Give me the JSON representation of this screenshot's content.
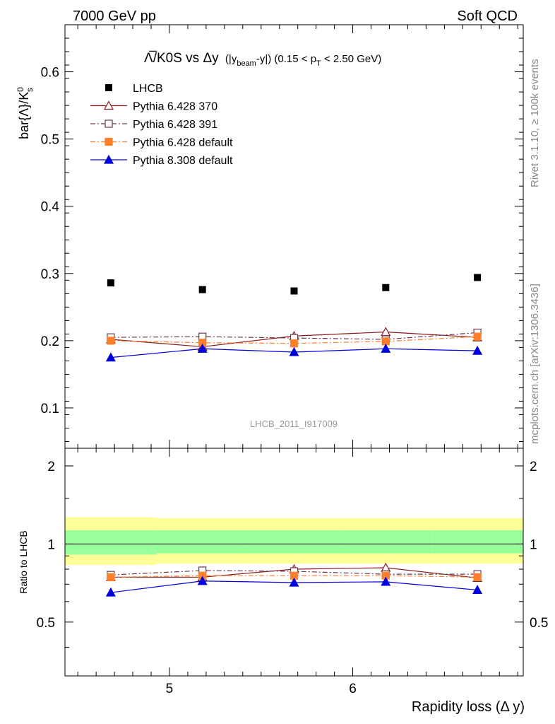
{
  "header": {
    "left": "7000 GeV pp",
    "right": "Soft QCD"
  },
  "side_labels": {
    "rivet": "Rivet 3.1.10, ≥ 100k events",
    "mcplots": "mcplots.cern.ch [arXiv:1306.3436]"
  },
  "watermark": "LHCB_2011_I917009",
  "colors": {
    "data": "#000000",
    "p370": "#8b1a1a",
    "p391": "#6b3a4a",
    "p6def": "#ff7f2a",
    "p8def": "#0000dd",
    "band_outer": "#ffff99",
    "band_inner": "#99ff99"
  },
  "chart_data": {
    "type": "scatter",
    "title_parts": {
      "main": "Λ̅/K0S vs Δy",
      "paren_open": "(|y",
      "sub1": "beam",
      "mid": "-y|) (0.15 < p",
      "sub2": "T",
      "end": " < 2.50 GeV)"
    },
    "xlabel": "Rapidity loss (Δ y)",
    "ylabel_main": "bar{Λ}/K",
    "ylabel_sup": "0",
    "ylabel_sub": "s",
    "ratio_ylabel": "Ratio to LHCB",
    "xlim": [
      4.43,
      6.93
    ],
    "ylim": [
      0.04,
      0.67
    ],
    "ratio_ylim": [
      0.31,
      2.34
    ],
    "x_ticks": [
      5,
      6
    ],
    "x_tick_labels": [
      "5",
      "6"
    ],
    "y_ticks": [
      0.1,
      0.2,
      0.3,
      0.4,
      0.5,
      0.6
    ],
    "y_tick_labels": [
      "0.1",
      "0.2",
      "0.3",
      "0.4",
      "0.5",
      "0.6"
    ],
    "ratio_ticks": [
      0.5,
      1,
      2
    ],
    "ratio_tick_labels": [
      "0.5",
      "1",
      "2"
    ],
    "ratio_tick_labels_right": [
      "0.5",
      "1",
      "2"
    ],
    "bins": [
      [
        4.43,
        4.93
      ],
      [
        4.93,
        5.43
      ],
      [
        5.43,
        5.93
      ],
      [
        5.93,
        6.43
      ],
      [
        6.43,
        6.93
      ]
    ],
    "x": [
      4.68,
      5.18,
      5.68,
      6.18,
      6.68
    ],
    "data": {
      "name": "LHCB",
      "values": [
        0.286,
        0.276,
        0.274,
        0.279,
        0.294
      ]
    },
    "ratio_band_outer": [
      [
        0.83,
        1.27
      ],
      [
        0.84,
        1.26
      ],
      [
        0.84,
        1.26
      ],
      [
        0.84,
        1.26
      ],
      [
        0.84,
        1.26
      ]
    ],
    "ratio_band_inner": [
      [
        0.91,
        1.13
      ],
      [
        0.92,
        1.13
      ],
      [
        0.92,
        1.13
      ],
      [
        0.92,
        1.13
      ],
      [
        0.92,
        1.13
      ]
    ],
    "series": [
      {
        "key": "p370",
        "name": "Pythia 6.428 370",
        "marker": "triangle-open",
        "dash": "",
        "values": [
          0.202,
          0.191,
          0.207,
          0.213,
          0.205
        ],
        "ratio": [
          0.745,
          0.745,
          0.8,
          0.81,
          0.74
        ]
      },
      {
        "key": "p391",
        "name": "Pythia 6.428 391",
        "marker": "square-open",
        "dash": "7,3,2,3",
        "values": [
          0.205,
          0.206,
          0.204,
          0.202,
          0.212
        ],
        "ratio": [
          0.76,
          0.79,
          0.785,
          0.765,
          0.765
        ]
      },
      {
        "key": "p6def",
        "name": "Pythia 6.428 default",
        "marker": "square-filled",
        "dash": "7,3,2,3",
        "values": [
          0.2,
          0.197,
          0.196,
          0.199,
          0.206
        ],
        "ratio": [
          0.745,
          0.755,
          0.755,
          0.755,
          0.745
        ]
      },
      {
        "key": "p8def",
        "name": "Pythia 8.308 default",
        "marker": "triangle-filled",
        "dash": "",
        "values": [
          0.175,
          0.188,
          0.183,
          0.188,
          0.185
        ],
        "ratio": [
          0.65,
          0.72,
          0.71,
          0.715,
          0.665
        ]
      }
    ],
    "legend_position": "top-left"
  }
}
